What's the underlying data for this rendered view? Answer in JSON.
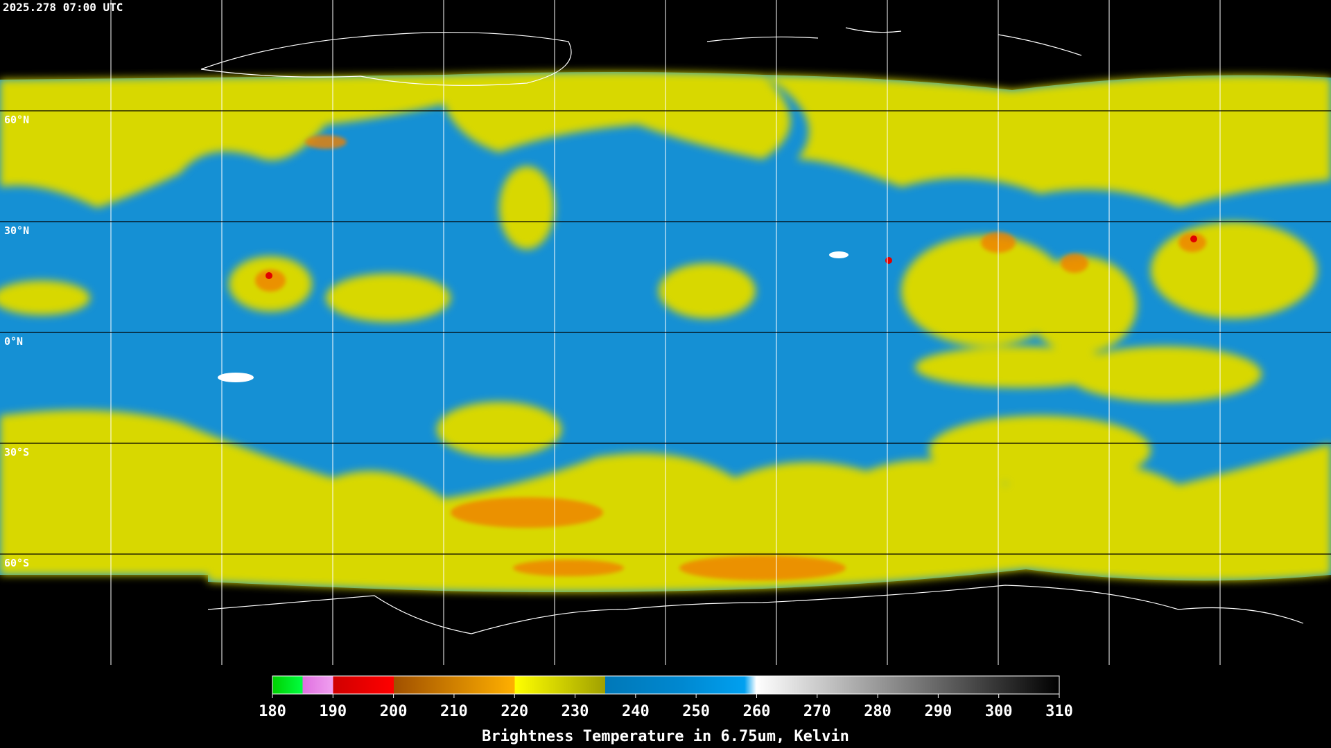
{
  "header": {
    "timestamp": "2025.278 07:00 UTC"
  },
  "map": {
    "lat_labels": [
      {
        "value": 60,
        "label": "60°N"
      },
      {
        "value": 30,
        "label": "30°N"
      },
      {
        "value": 0,
        "label": "0°N"
      },
      {
        "value": -30,
        "label": "30°S"
      },
      {
        "value": -60,
        "label": "60°S"
      }
    ]
  },
  "colorbar": {
    "ticks": [
      180,
      190,
      200,
      210,
      220,
      230,
      240,
      250,
      260,
      270,
      280,
      290,
      300,
      310
    ],
    "label": "Brightness Temperature in 6.75um, Kelvin"
  }
}
